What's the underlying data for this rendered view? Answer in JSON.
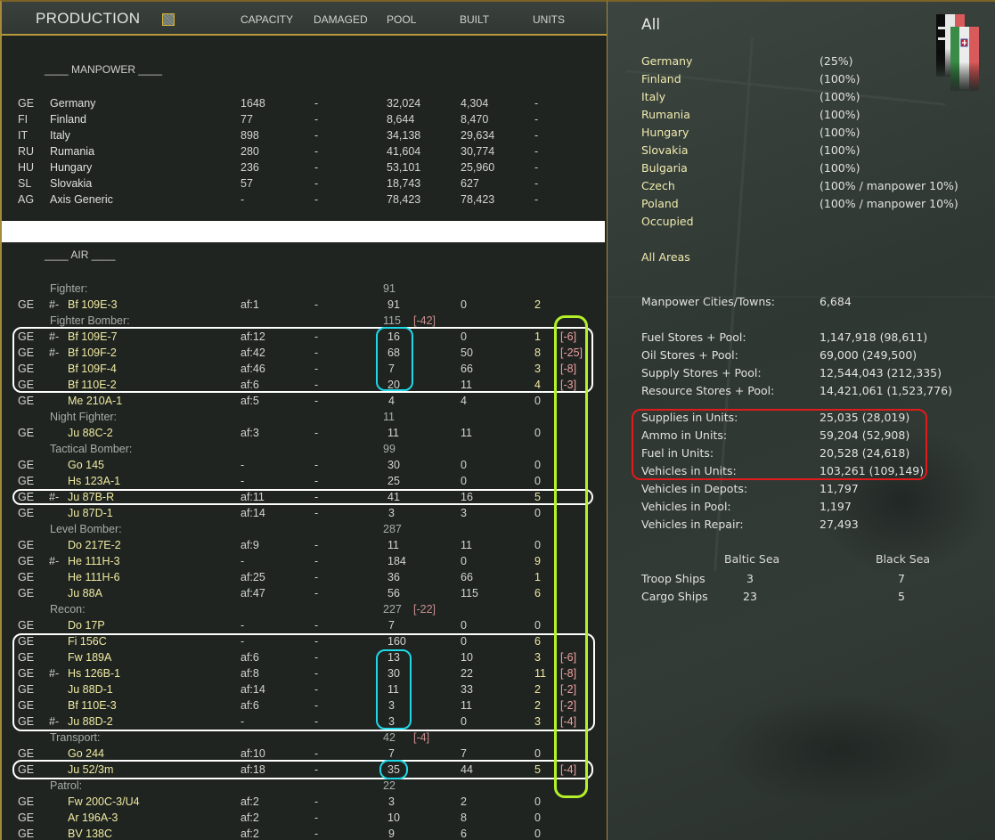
{
  "header": {
    "title": "PRODUCTION",
    "chart_icon": "chart-icon",
    "columns": [
      "CAPACITY",
      "DAMAGED",
      "POOL",
      "BUILT",
      "UNITS"
    ]
  },
  "manpower": {
    "title": "____ MANPOWER ____",
    "rows": [
      {
        "code": "GE",
        "name": "Germany",
        "capacity": "1648",
        "damaged": "-",
        "pool": "32,024",
        "built": "4,304",
        "units": "-"
      },
      {
        "code": "FI",
        "name": "Finland",
        "capacity": "77",
        "damaged": "-",
        "pool": "8,644",
        "built": "8,470",
        "units": "-"
      },
      {
        "code": "IT",
        "name": "Italy",
        "capacity": "898",
        "damaged": "-",
        "pool": "34,138",
        "built": "29,634",
        "units": "-"
      },
      {
        "code": "RU",
        "name": "Rumania",
        "capacity": "280",
        "damaged": "-",
        "pool": "41,604",
        "built": "30,774",
        "units": "-"
      },
      {
        "code": "HU",
        "name": "Hungary",
        "capacity": "236",
        "damaged": "-",
        "pool": "53,101",
        "built": "25,960",
        "units": "-"
      },
      {
        "code": "SL",
        "name": "Slovakia",
        "capacity": "57",
        "damaged": "-",
        "pool": "18,743",
        "built": "627",
        "units": "-"
      },
      {
        "code": "AG",
        "name": "Axis Generic",
        "capacity": "-",
        "damaged": "-",
        "pool": "78,423",
        "built": "78,423",
        "units": "-"
      }
    ]
  },
  "air": {
    "title": "____  AIR  ____",
    "lines": [
      {
        "type": "cat",
        "label": "Fighter:",
        "pool": "91",
        "loss": ""
      },
      {
        "type": "item",
        "code": "GE",
        "mark": "#-",
        "name": "Bf 109E-3",
        "capacity": "af:1",
        "damaged": "-",
        "pool": "91",
        "built": "0",
        "units": "2",
        "loss": ""
      },
      {
        "type": "cat",
        "label": "Fighter Bomber:",
        "pool": "115",
        "loss": "[-42]"
      },
      {
        "type": "item",
        "code": "GE",
        "mark": "#-",
        "name": "Bf 109E-7",
        "capacity": "af:12",
        "damaged": "-",
        "pool": "16",
        "built": "0",
        "units": "1",
        "loss": "[-6]"
      },
      {
        "type": "item",
        "code": "GE",
        "mark": "#-",
        "name": "Bf 109F-2",
        "capacity": "af:42",
        "damaged": "-",
        "pool": "68",
        "built": "50",
        "units": "8",
        "loss": "[-25]"
      },
      {
        "type": "item",
        "code": "GE",
        "mark": "",
        "name": "Bf 109F-4",
        "capacity": "af:46",
        "damaged": "-",
        "pool": "7",
        "built": "66",
        "units": "3",
        "loss": "[-8]"
      },
      {
        "type": "item",
        "code": "GE",
        "mark": "",
        "name": "Bf 110E-2",
        "capacity": "af:6",
        "damaged": "-",
        "pool": "20",
        "built": "11",
        "units": "4",
        "loss": "[-3]"
      },
      {
        "type": "item",
        "code": "GE",
        "mark": "",
        "name": "Me 210A-1",
        "capacity": "af:5",
        "damaged": "-",
        "pool": "4",
        "built": "4",
        "units": "0",
        "loss": ""
      },
      {
        "type": "cat",
        "label": "Night Fighter:",
        "pool": "11",
        "loss": ""
      },
      {
        "type": "item",
        "code": "GE",
        "mark": "",
        "name": "Ju 88C-2",
        "capacity": "af:3",
        "damaged": "-",
        "pool": "11",
        "built": "11",
        "units": "0",
        "loss": ""
      },
      {
        "type": "cat",
        "label": "Tactical Bomber:",
        "pool": "99",
        "loss": ""
      },
      {
        "type": "item",
        "code": "GE",
        "mark": "",
        "name": "Go 145",
        "capacity": "-",
        "damaged": "-",
        "pool": "30",
        "built": "0",
        "units": "0",
        "loss": ""
      },
      {
        "type": "item",
        "code": "GE",
        "mark": "",
        "name": "Hs 123A-1",
        "capacity": "-",
        "damaged": "-",
        "pool": "25",
        "built": "0",
        "units": "0",
        "loss": ""
      },
      {
        "type": "item",
        "code": "GE",
        "mark": "#-",
        "name": "Ju 87B-R",
        "capacity": "af:11",
        "damaged": "-",
        "pool": "41",
        "built": "16",
        "units": "5",
        "loss": ""
      },
      {
        "type": "item",
        "code": "GE",
        "mark": "",
        "name": "Ju 87D-1",
        "capacity": "af:14",
        "damaged": "-",
        "pool": "3",
        "built": "3",
        "units": "0",
        "loss": ""
      },
      {
        "type": "cat",
        "label": "Level Bomber:",
        "pool": "287",
        "loss": ""
      },
      {
        "type": "item",
        "code": "GE",
        "mark": "",
        "name": "Do 217E-2",
        "capacity": "af:9",
        "damaged": "-",
        "pool": "11",
        "built": "11",
        "units": "0",
        "loss": ""
      },
      {
        "type": "item",
        "code": "GE",
        "mark": "#-",
        "name": "He 111H-3",
        "capacity": "-",
        "damaged": "-",
        "pool": "184",
        "built": "0",
        "units": "9",
        "loss": ""
      },
      {
        "type": "item",
        "code": "GE",
        "mark": "",
        "name": "He 111H-6",
        "capacity": "af:25",
        "damaged": "-",
        "pool": "36",
        "built": "66",
        "units": "1",
        "loss": ""
      },
      {
        "type": "item",
        "code": "GE",
        "mark": "",
        "name": "Ju 88A",
        "capacity": "af:47",
        "damaged": "-",
        "pool": "56",
        "built": "115",
        "units": "6",
        "loss": ""
      },
      {
        "type": "cat",
        "label": "Recon:",
        "pool": "227",
        "loss": "[-22]"
      },
      {
        "type": "item",
        "code": "GE",
        "mark": "",
        "name": "Do 17P",
        "capacity": "-",
        "damaged": "-",
        "pool": "7",
        "built": "0",
        "units": "0",
        "loss": ""
      },
      {
        "type": "item",
        "code": "GE",
        "mark": "",
        "name": "Fi 156C",
        "capacity": "-",
        "damaged": "-",
        "pool": "160",
        "built": "0",
        "units": "6",
        "loss": ""
      },
      {
        "type": "item",
        "code": "GE",
        "mark": "",
        "name": "Fw 189A",
        "capacity": "af:6",
        "damaged": "-",
        "pool": "13",
        "built": "10",
        "units": "3",
        "loss": "[-6]"
      },
      {
        "type": "item",
        "code": "GE",
        "mark": "#-",
        "name": "Hs 126B-1",
        "capacity": "af:8",
        "damaged": "-",
        "pool": "30",
        "built": "22",
        "units": "11",
        "loss": "[-8]"
      },
      {
        "type": "item",
        "code": "GE",
        "mark": "",
        "name": "Ju 88D-1",
        "capacity": "af:14",
        "damaged": "-",
        "pool": "11",
        "built": "33",
        "units": "2",
        "loss": "[-2]"
      },
      {
        "type": "item",
        "code": "GE",
        "mark": "",
        "name": "Bf 110E-3",
        "capacity": "af:6",
        "damaged": "-",
        "pool": "3",
        "built": "11",
        "units": "2",
        "loss": "[-2]"
      },
      {
        "type": "item",
        "code": "GE",
        "mark": "#-",
        "name": "Ju 88D-2",
        "capacity": "-",
        "damaged": "-",
        "pool": "3",
        "built": "0",
        "units": "3",
        "loss": "[-4]"
      },
      {
        "type": "cat",
        "label": "Transport:",
        "pool": "42",
        "loss": "[-4]"
      },
      {
        "type": "item",
        "code": "GE",
        "mark": "",
        "name": "Go 244",
        "capacity": "af:10",
        "damaged": "-",
        "pool": "7",
        "built": "7",
        "units": "0",
        "loss": ""
      },
      {
        "type": "item",
        "code": "GE",
        "mark": "",
        "name": "Ju 52/3m",
        "capacity": "af:18",
        "damaged": "-",
        "pool": "35",
        "built": "44",
        "units": "5",
        "loss": "[-4]"
      },
      {
        "type": "cat",
        "label": "Patrol:",
        "pool": "22",
        "loss": ""
      },
      {
        "type": "item",
        "code": "GE",
        "mark": "",
        "name": "Fw 200C-3/U4",
        "capacity": "af:2",
        "damaged": "-",
        "pool": "3",
        "built": "2",
        "units": "0",
        "loss": ""
      },
      {
        "type": "item",
        "code": "GE",
        "mark": "",
        "name": "Ar 196A-3",
        "capacity": "af:2",
        "damaged": "-",
        "pool": "10",
        "built": "8",
        "units": "0",
        "loss": ""
      },
      {
        "type": "item",
        "code": "GE",
        "mark": "",
        "name": "BV 138C",
        "capacity": "af:2",
        "damaged": "-",
        "pool": "9",
        "built": "6",
        "units": "0",
        "loss": ""
      }
    ]
  },
  "summary": {
    "title": "All",
    "nations": [
      {
        "name": "Germany",
        "value": "(25%)"
      },
      {
        "name": "Finland",
        "value": "(100%)"
      },
      {
        "name": "Italy",
        "value": "(100%)"
      },
      {
        "name": "Rumania",
        "value": "(100%)"
      },
      {
        "name": "Hungary",
        "value": "(100%)"
      },
      {
        "name": "Slovakia",
        "value": "(100%)"
      },
      {
        "name": "Bulgaria",
        "value": "(100%)"
      },
      {
        "name": "Czech",
        "value": "(100% / manpower 10%)"
      },
      {
        "name": "Poland",
        "value": "(100% / manpower 10%)"
      },
      {
        "name": "Occupied",
        "value": ""
      }
    ],
    "all_areas": "All Areas",
    "manpower_cities": {
      "label": "Manpower Cities/Towns:",
      "value": "6,684"
    },
    "stores": [
      {
        "label": "Fuel Stores + Pool:",
        "value": "1,147,918 (98,611)"
      },
      {
        "label": "Oil Stores + Pool:",
        "value": "69,000 (249,500)"
      },
      {
        "label": "Supply Stores + Pool:",
        "value": "12,544,043 (212,335)"
      },
      {
        "label": "Resource Stores + Pool:",
        "value": "14,421,061 (1,523,776)"
      }
    ],
    "units": [
      {
        "label": "Supplies in Units:",
        "value": "25,035 (28,019)"
      },
      {
        "label": "Ammo in Units:",
        "value": "59,204 (52,908)"
      },
      {
        "label": "Fuel in Units:",
        "value": "20,528 (24,618)"
      },
      {
        "label": "Vehicles in Units:",
        "value": "103,261 (109,149)"
      },
      {
        "label": "Vehicles in Depots:",
        "value": "11,797"
      },
      {
        "label": "Vehicles in Pool:",
        "value": "1,197"
      },
      {
        "label": "Vehicles in Repair:",
        "value": "27,493"
      }
    ],
    "ships": {
      "seas": [
        "Baltic Sea",
        "Black Sea"
      ],
      "rows": [
        {
          "label": "Troop Ships",
          "values": [
            "3",
            "7"
          ]
        },
        {
          "label": "Cargo Ships",
          "values": [
            "23",
            "5"
          ]
        }
      ]
    },
    "flags": [
      "germany-flag",
      "italy-flag"
    ]
  },
  "colors": {
    "annotation_white": "#ffffff",
    "annotation_cyan": "#1fd8e8",
    "annotation_green": "#b4f02a",
    "annotation_red": "#e01b1b",
    "accent_gold": "#b89a3c",
    "aircraft_name": "#f0eaa0",
    "loss_text": "#f0a0a0"
  }
}
